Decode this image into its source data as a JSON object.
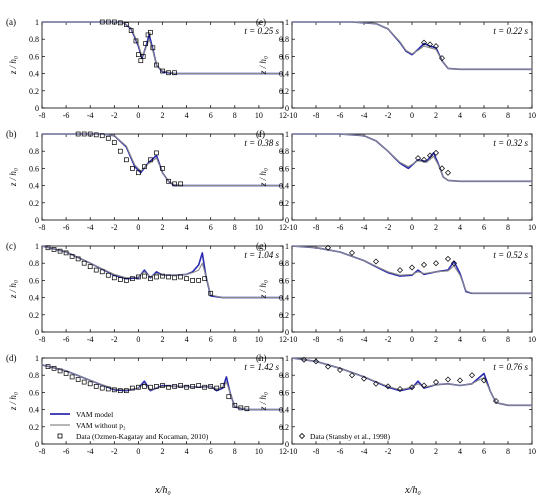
{
  "figure": {
    "panel_letters": [
      "(a)",
      "(b)",
      "(c)",
      "(d)",
      "(e)",
      "(f)",
      "(g)",
      "(h)"
    ],
    "ylabel": "z / h₀",
    "xlabel_left": "x/h₀",
    "xlabel_right": "x/h₀",
    "y_ticks": [
      "0",
      "0.2",
      "0.4",
      "0.6",
      "0.8",
      "1"
    ],
    "x_ticks_left": [
      "-8",
      "-6",
      "-4",
      "-2",
      "0",
      "2",
      "4",
      "6",
      "8",
      "10",
      "12"
    ],
    "x_ticks_right": [
      "-10",
      "-8",
      "-6",
      "-4",
      "-2",
      "0",
      "2",
      "4",
      "6",
      "8",
      "10"
    ],
    "legend_left": [
      {
        "label": "VAM model",
        "style": "line",
        "color": "#2b2bb0"
      },
      {
        "label": "VAM without p₂",
        "style": "line",
        "color": "#8a8a8a"
      },
      {
        "label": "Data (Ozmen-Kagatay and Kocaman, 2010)",
        "style": "square-marker",
        "color": "#000000"
      }
    ],
    "legend_right": [
      {
        "label": "Data (Stansby et al., 1998)",
        "style": "diamond-marker",
        "color": "#000000"
      }
    ],
    "colors": {
      "vam": "#2b2bb0",
      "vam_no_p2": "#8a8a8a",
      "data": "#000000"
    }
  },
  "chart_data": [
    {
      "panel": "(a)",
      "type": "line",
      "time_label": "t = 0.25 s",
      "xlim": [
        -8,
        12
      ],
      "ylim": [
        0,
        1
      ],
      "xlabel": "",
      "ylabel": "z/h₀",
      "series": [
        {
          "name": "VAM model",
          "x": [
            -8,
            -2,
            -1.2,
            -0.6,
            0,
            0.3,
            0.6,
            0.9,
            1.2,
            1.5,
            2,
            3,
            4,
            12
          ],
          "y": [
            1,
            1,
            0.99,
            0.92,
            0.72,
            0.58,
            0.7,
            0.85,
            0.68,
            0.5,
            0.42,
            0.4,
            0.4,
            0.4
          ]
        },
        {
          "name": "VAM without p₂",
          "x": [
            -8,
            -2,
            -1.2,
            -0.6,
            0,
            0.3,
            0.6,
            0.9,
            1.2,
            1.5,
            2,
            3,
            4,
            12
          ],
          "y": [
            1,
            1,
            0.99,
            0.93,
            0.74,
            0.6,
            0.69,
            0.8,
            0.66,
            0.5,
            0.43,
            0.4,
            0.4,
            0.4
          ]
        },
        {
          "name": "Data (Ozmen-Kagatay and Kocaman, 2010)",
          "x": [
            -3,
            -2.5,
            -2,
            -1.5,
            -1,
            -0.6,
            -0.2,
            0,
            0.2,
            0.4,
            0.6,
            0.8,
            1,
            1.2,
            1.5,
            2,
            2.5,
            3
          ],
          "y": [
            1,
            1,
            1,
            0.99,
            0.97,
            0.9,
            0.78,
            0.62,
            0.55,
            0.6,
            0.75,
            0.85,
            0.88,
            0.7,
            0.5,
            0.43,
            0.41,
            0.41
          ]
        }
      ]
    },
    {
      "panel": "(b)",
      "type": "line",
      "time_label": "t = 0.38 s",
      "xlim": [
        -8,
        12
      ],
      "ylim": [
        0,
        1
      ],
      "xlabel": "",
      "ylabel": "z/h₀",
      "series": [
        {
          "name": "VAM model",
          "x": [
            -8,
            -3,
            -2,
            -1,
            -0.3,
            0.2,
            0.8,
            1.5,
            2.0,
            2.5,
            3.0,
            4,
            12
          ],
          "y": [
            1,
            1,
            0.98,
            0.85,
            0.62,
            0.55,
            0.66,
            0.75,
            0.55,
            0.45,
            0.4,
            0.4,
            0.4
          ]
        },
        {
          "name": "VAM without p₂",
          "x": [
            -8,
            -3,
            -2,
            -1,
            -0.3,
            0.2,
            0.8,
            1.5,
            2.0,
            2.5,
            3.0,
            4,
            12
          ],
          "y": [
            1,
            1,
            0.98,
            0.86,
            0.64,
            0.57,
            0.65,
            0.72,
            0.55,
            0.45,
            0.41,
            0.4,
            0.4
          ]
        },
        {
          "name": "Data (Ozmen-Kagatay and Kocaman, 2010)",
          "x": [
            -5,
            -4.5,
            -4,
            -3.5,
            -3,
            -2.5,
            -2,
            -1.5,
            -1,
            -0.5,
            0,
            0.5,
            1,
            1.5,
            2,
            2.5,
            3,
            3.5
          ],
          "y": [
            1,
            1,
            1,
            0.99,
            0.98,
            0.95,
            0.9,
            0.8,
            0.7,
            0.6,
            0.55,
            0.62,
            0.7,
            0.78,
            0.6,
            0.45,
            0.42,
            0.42
          ]
        }
      ]
    },
    {
      "panel": "(c)",
      "type": "line",
      "time_label": "t = 1.04 s",
      "xlim": [
        -8,
        12
      ],
      "ylim": [
        0,
        1
      ],
      "xlabel": "",
      "ylabel": "z/h₀",
      "series": [
        {
          "name": "VAM model",
          "x": [
            -8,
            -6,
            -4,
            -2,
            -1,
            0,
            0.5,
            1,
            1.5,
            2,
            3,
            4,
            4.5,
            5,
            5.3,
            5.6,
            6,
            7,
            12
          ],
          "y": [
            1,
            0.93,
            0.8,
            0.66,
            0.62,
            0.63,
            0.72,
            0.63,
            0.7,
            0.66,
            0.66,
            0.67,
            0.7,
            0.78,
            0.92,
            0.65,
            0.42,
            0.4,
            0.4
          ]
        },
        {
          "name": "VAM without p₂",
          "x": [
            -8,
            -6,
            -4,
            -2,
            -1,
            0,
            0.5,
            1,
            1.5,
            2,
            3,
            4,
            4.5,
            5,
            5.3,
            5.6,
            6,
            7,
            12
          ],
          "y": [
            1,
            0.93,
            0.8,
            0.67,
            0.63,
            0.64,
            0.7,
            0.64,
            0.68,
            0.66,
            0.66,
            0.67,
            0.69,
            0.72,
            0.8,
            0.65,
            0.43,
            0.4,
            0.4
          ]
        },
        {
          "name": "Data (Ozmen-Kagatay and Kocaman, 2010)",
          "x": [
            -7.5,
            -7,
            -6.5,
            -6,
            -5.5,
            -5,
            -4.5,
            -4,
            -3.5,
            -3,
            -2.5,
            -2,
            -1.5,
            -1,
            -0.5,
            0,
            0.5,
            1,
            1.5,
            2,
            2.5,
            3,
            3.5,
            4,
            4.5,
            5,
            5.5,
            6
          ],
          "y": [
            0.98,
            0.96,
            0.94,
            0.92,
            0.88,
            0.85,
            0.8,
            0.76,
            0.72,
            0.7,
            0.66,
            0.63,
            0.61,
            0.6,
            0.62,
            0.64,
            0.65,
            0.62,
            0.64,
            0.65,
            0.64,
            0.63,
            0.64,
            0.62,
            0.6,
            0.6,
            0.62,
            0.45
          ]
        }
      ]
    },
    {
      "panel": "(d)",
      "type": "line",
      "time_label": "t = 1.42 s",
      "xlim": [
        -8,
        12
      ],
      "ylim": [
        0,
        1
      ],
      "xlabel": "x/h₀",
      "ylabel": "z/h₀",
      "series": [
        {
          "name": "VAM model",
          "x": [
            -8,
            -6,
            -4,
            -2,
            -1,
            0,
            0.5,
            1,
            2,
            3,
            4,
            5,
            6,
            6.5,
            7,
            7.3,
            7.6,
            8,
            9,
            12
          ],
          "y": [
            0.92,
            0.85,
            0.74,
            0.63,
            0.62,
            0.65,
            0.73,
            0.62,
            0.68,
            0.67,
            0.67,
            0.66,
            0.67,
            0.62,
            0.65,
            0.78,
            0.6,
            0.43,
            0.4,
            0.4
          ]
        },
        {
          "name": "VAM without p₂",
          "x": [
            -8,
            -6,
            -4,
            -2,
            -1,
            0,
            0.5,
            1,
            2,
            3,
            4,
            5,
            6,
            6.5,
            7,
            7.3,
            7.6,
            8,
            9,
            12
          ],
          "y": [
            0.92,
            0.85,
            0.74,
            0.64,
            0.63,
            0.65,
            0.7,
            0.63,
            0.67,
            0.67,
            0.67,
            0.66,
            0.67,
            0.64,
            0.66,
            0.72,
            0.6,
            0.44,
            0.4,
            0.4
          ]
        },
        {
          "name": "Data (Ozmen-Kagatay and Kocaman, 2010)",
          "x": [
            -7.5,
            -7,
            -6.5,
            -6,
            -5.5,
            -5,
            -4.5,
            -4,
            -3.5,
            -3,
            -2.5,
            -2,
            -1.5,
            -1,
            -0.5,
            0,
            0.5,
            1,
            1.5,
            2,
            2.5,
            3,
            3.5,
            4,
            4.5,
            5,
            5.5,
            6,
            6.5,
            7,
            7.5,
            8,
            8.5,
            9
          ],
          "y": [
            0.9,
            0.88,
            0.85,
            0.82,
            0.78,
            0.75,
            0.72,
            0.7,
            0.67,
            0.65,
            0.64,
            0.63,
            0.62,
            0.62,
            0.65,
            0.66,
            0.67,
            0.66,
            0.67,
            0.68,
            0.66,
            0.67,
            0.68,
            0.66,
            0.67,
            0.68,
            0.66,
            0.67,
            0.65,
            0.68,
            0.55,
            0.45,
            0.42,
            0.41
          ]
        }
      ]
    },
    {
      "panel": "(e)",
      "type": "line",
      "time_label": "t = 0.22 s",
      "xlim": [
        -10,
        10
      ],
      "ylim": [
        0,
        1
      ],
      "xlabel": "",
      "ylabel": "",
      "series": [
        {
          "name": "VAM model",
          "x": [
            -10,
            -5,
            -3,
            -2,
            -1,
            -0.5,
            0,
            0.5,
            1,
            1.5,
            2,
            2.5,
            3,
            4,
            10
          ],
          "y": [
            1,
            1,
            0.98,
            0.92,
            0.76,
            0.66,
            0.62,
            0.68,
            0.75,
            0.72,
            0.7,
            0.55,
            0.46,
            0.45,
            0.45
          ]
        },
        {
          "name": "VAM without p₂",
          "x": [
            -10,
            -5,
            -3,
            -2,
            -1,
            -0.5,
            0,
            0.5,
            1,
            1.5,
            2,
            2.5,
            3,
            4,
            10
          ],
          "y": [
            1,
            1,
            0.98,
            0.92,
            0.77,
            0.67,
            0.63,
            0.67,
            0.72,
            0.7,
            0.68,
            0.55,
            0.46,
            0.45,
            0.45
          ]
        },
        {
          "name": "Data (Stansby et al., 1998)",
          "x": [
            1,
            1.5,
            2,
            2.5
          ],
          "y": [
            0.76,
            0.74,
            0.72,
            0.58
          ]
        }
      ]
    },
    {
      "panel": "(f)",
      "type": "line",
      "time_label": "t = 0.32 s",
      "xlim": [
        -10,
        10
      ],
      "ylim": [
        0,
        1
      ],
      "xlabel": "",
      "ylabel": "",
      "series": [
        {
          "name": "VAM model",
          "x": [
            -10,
            -6,
            -4,
            -3,
            -2,
            -1,
            -0.3,
            0.5,
            1.2,
            1.8,
            2.2,
            2.6,
            3,
            4,
            10
          ],
          "y": [
            1,
            1,
            0.98,
            0.92,
            0.8,
            0.66,
            0.6,
            0.7,
            0.68,
            0.78,
            0.65,
            0.5,
            0.46,
            0.45,
            0.45
          ]
        },
        {
          "name": "VAM without p₂",
          "x": [
            -10,
            -6,
            -4,
            -3,
            -2,
            -1,
            -0.3,
            0.5,
            1.2,
            1.8,
            2.2,
            2.6,
            3,
            4,
            10
          ],
          "y": [
            1,
            1,
            0.98,
            0.92,
            0.8,
            0.67,
            0.62,
            0.69,
            0.67,
            0.74,
            0.64,
            0.5,
            0.46,
            0.45,
            0.45
          ]
        },
        {
          "name": "Data (Stansby et al., 1998)",
          "x": [
            0.5,
            1,
            1.5,
            2,
            2.5,
            3
          ],
          "y": [
            0.72,
            0.7,
            0.75,
            0.78,
            0.6,
            0.55
          ]
        }
      ]
    },
    {
      "panel": "(g)",
      "type": "line",
      "time_label": "t = 0.52 s",
      "xlim": [
        -10,
        10
      ],
      "ylim": [
        0,
        1
      ],
      "xlabel": "",
      "ylabel": "",
      "series": [
        {
          "name": "VAM model",
          "x": [
            -10,
            -8,
            -6,
            -4,
            -2,
            -1,
            0,
            0.5,
            1,
            2,
            3,
            3.5,
            4,
            4.5,
            5,
            6,
            10
          ],
          "y": [
            1,
            0.98,
            0.93,
            0.83,
            0.69,
            0.65,
            0.66,
            0.72,
            0.67,
            0.7,
            0.72,
            0.82,
            0.68,
            0.47,
            0.45,
            0.45,
            0.45
          ]
        },
        {
          "name": "VAM without p₂",
          "x": [
            -10,
            -8,
            -6,
            -4,
            -2,
            -1,
            0,
            0.5,
            1,
            2,
            3,
            3.5,
            4,
            4.5,
            5,
            6,
            10
          ],
          "y": [
            1,
            0.98,
            0.93,
            0.83,
            0.7,
            0.66,
            0.67,
            0.7,
            0.68,
            0.7,
            0.71,
            0.77,
            0.66,
            0.48,
            0.45,
            0.45,
            0.45
          ]
        },
        {
          "name": "Data (Stansby et al., 1998)",
          "x": [
            -7,
            -5,
            -3,
            -1,
            0,
            1,
            2,
            3,
            3.5
          ],
          "y": [
            0.98,
            0.92,
            0.82,
            0.72,
            0.75,
            0.78,
            0.8,
            0.85,
            0.8
          ]
        }
      ]
    },
    {
      "panel": "(h)",
      "type": "line",
      "time_label": "t = 0.76 s",
      "xlim": [
        -10,
        10
      ],
      "ylim": [
        0,
        1
      ],
      "xlabel": "x/h₀",
      "ylabel": "",
      "series": [
        {
          "name": "VAM model",
          "x": [
            -10,
            -8,
            -6,
            -4,
            -2,
            -1,
            0,
            0.5,
            1,
            2,
            3,
            4,
            5,
            5.5,
            6,
            6.5,
            7,
            8,
            10
          ],
          "y": [
            1,
            0.96,
            0.88,
            0.78,
            0.66,
            0.62,
            0.65,
            0.73,
            0.65,
            0.69,
            0.7,
            0.68,
            0.7,
            0.76,
            0.82,
            0.62,
            0.48,
            0.45,
            0.45
          ]
        },
        {
          "name": "VAM without p₂",
          "x": [
            -10,
            -8,
            -6,
            -4,
            -2,
            -1,
            0,
            0.5,
            1,
            2,
            3,
            4,
            5,
            5.5,
            6,
            6.5,
            7,
            8,
            10
          ],
          "y": [
            1,
            0.96,
            0.88,
            0.78,
            0.67,
            0.63,
            0.66,
            0.7,
            0.66,
            0.69,
            0.7,
            0.68,
            0.7,
            0.74,
            0.77,
            0.62,
            0.48,
            0.45,
            0.45
          ]
        },
        {
          "name": "Data (Stansby et al., 1998)",
          "x": [
            -9,
            -8,
            -7,
            -6,
            -5,
            -4,
            -3,
            -2,
            -1,
            0,
            1,
            2,
            3,
            4,
            5,
            6,
            7
          ],
          "y": [
            0.98,
            0.96,
            0.9,
            0.86,
            0.8,
            0.76,
            0.7,
            0.67,
            0.64,
            0.66,
            0.68,
            0.72,
            0.75,
            0.74,
            0.8,
            0.74,
            0.5
          ]
        }
      ]
    }
  ]
}
